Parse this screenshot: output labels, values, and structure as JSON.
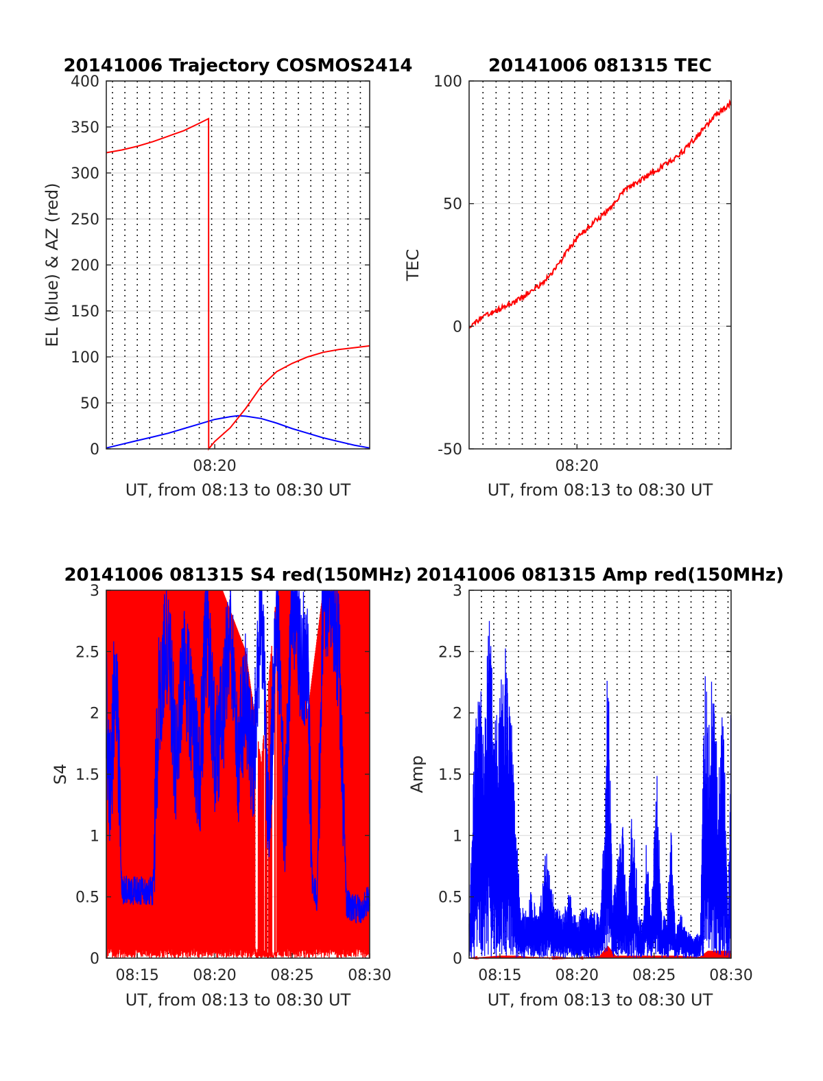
{
  "palette": {
    "red": "#ff0000",
    "blue": "#0000ff",
    "axis": "#262626",
    "grid": "#dcdcdc"
  },
  "chart_data": [
    {
      "type": "line",
      "title": "20141006 Trajectory COSMOS2414",
      "xlabel": "UT, from 08:13 to 08:30 UT",
      "ylabel": "EL (blue) & AZ (red)",
      "xlim": [
        13.0,
        30.0
      ],
      "ylim": [
        0,
        400
      ],
      "yticks": [
        0,
        50,
        100,
        150,
        200,
        250,
        300,
        350,
        400
      ],
      "xticks": [
        {
          "x": 20,
          "label": "08:20"
        }
      ],
      "grid_x": [
        13.4,
        14.2,
        15.0,
        15.8,
        16.6,
        17.4,
        18.2,
        19.0,
        19.8,
        20.6,
        21.4,
        22.2,
        23.0,
        23.8,
        24.6,
        25.4,
        26.2,
        27.0,
        27.8,
        28.6,
        29.4
      ],
      "series": [
        {
          "color": "blue",
          "x": [
            13.0,
            14.0,
            15.0,
            16.0,
            17.0,
            18.0,
            19.0,
            20.0,
            21.0,
            21.5,
            22.0,
            23.0,
            24.0,
            25.0,
            26.0,
            27.0,
            28.0,
            29.0,
            30.0
          ],
          "y": [
            1,
            5,
            9,
            13,
            17,
            22,
            27,
            32,
            35,
            36,
            35.5,
            33,
            28,
            22,
            17,
            12,
            8,
            4,
            1
          ]
        },
        {
          "color": "red",
          "x": [
            13.0,
            14.0,
            15.0,
            16.0,
            17.0,
            18.0,
            19.0,
            19.6,
            19.61,
            20.0,
            21.0,
            22.0,
            23.0,
            24.0,
            25.0,
            26.0,
            27.0,
            28.0,
            29.0,
            30.0
          ],
          "y": [
            322,
            325,
            329,
            334,
            340,
            346,
            354,
            359,
            0,
            8,
            23,
            44,
            68,
            84,
            93,
            100,
            105,
            108,
            110,
            112
          ]
        }
      ]
    },
    {
      "type": "line",
      "title": "20141006 081315 TEC",
      "xlabel": "UT, from 08:13 to 08:30 UT",
      "ylabel": "TEC",
      "xlim": [
        13.0,
        30.0
      ],
      "ylim": [
        -50,
        100
      ],
      "yticks": [
        -50,
        0,
        50,
        100
      ],
      "xticks": [
        {
          "x": 20,
          "label": "08:20"
        }
      ],
      "grid_x": [
        13.9,
        14.75,
        15.6,
        16.45,
        17.3,
        18.15,
        19.0,
        19.85,
        20.7,
        21.55,
        22.4,
        23.25,
        24.1,
        24.95,
        25.8,
        26.65,
        27.5,
        28.35,
        29.2
      ],
      "series": [
        {
          "color": "red",
          "x": [
            13.0,
            14.0,
            15.0,
            16.0,
            17.0,
            18.0,
            19.0,
            20.0,
            21.0,
            22.0,
            23.0,
            24.0,
            25.0,
            26.0,
            27.0,
            28.0,
            29.0,
            30.0
          ],
          "y": [
            0,
            4,
            7,
            10,
            14,
            19,
            27,
            36,
            42,
            47,
            55,
            59,
            63,
            67,
            72,
            79,
            86,
            91
          ]
        }
      ]
    },
    {
      "type": "line",
      "title": "20141006 081315 S4 red(150MHz)",
      "xlabel": "UT, from 08:13 to 08:30 UT",
      "ylabel": "S4",
      "xlim": [
        13.0,
        30.0
      ],
      "ylim": [
        0,
        3
      ],
      "yticks": [
        0,
        0.5,
        1,
        1.5,
        2,
        2.5,
        3
      ],
      "xticks": [
        {
          "x": 15,
          "label": "08:15"
        },
        {
          "x": 20,
          "label": "08:20"
        },
        {
          "x": 25,
          "label": "08:25"
        },
        {
          "x": 30,
          "label": "08:30"
        }
      ],
      "grid_x": [
        13.8,
        14.6,
        15.4,
        16.2,
        17.0,
        17.8,
        18.6,
        19.4,
        20.2,
        21.0,
        21.8,
        22.6,
        23.4,
        24.2,
        25.0,
        25.8,
        26.6,
        27.4,
        28.2,
        29.0,
        29.8
      ],
      "series": [
        {
          "color": "red",
          "x": [
            13.0,
            14.5,
            16.0,
            17.5,
            19.0,
            20.5,
            22.0,
            23.0,
            24.0,
            25.0,
            26.0,
            27.0,
            28.0,
            29.0,
            30.0
          ],
          "y": [
            3.0,
            3.0,
            3.0,
            3.0,
            3.0,
            3.0,
            2.5,
            1.6,
            3.0,
            3.0,
            2.0,
            3.0,
            3.0,
            3.0,
            3.0
          ]
        },
        {
          "color": "blue",
          "x": [
            13.0,
            13.3,
            13.6,
            14.0,
            15.0,
            16.0,
            16.4,
            17.0,
            17.5,
            18.0,
            18.5,
            19.0,
            19.5,
            20.0,
            20.5,
            21.0,
            21.5,
            22.0,
            22.5,
            23.0,
            23.5,
            24.0,
            24.5,
            25.0,
            25.5,
            26.0,
            26.3,
            26.6,
            27.0,
            27.5,
            28.0,
            28.5,
            29.0,
            29.5,
            30.0
          ],
          "y": [
            2.0,
            1.3,
            2.6,
            0.55,
            0.55,
            0.55,
            2.2,
            2.6,
            1.5,
            2.4,
            2.0,
            1.4,
            2.8,
            1.7,
            1.9,
            2.8,
            1.6,
            2.2,
            1.5,
            3.0,
            0.9,
            3.0,
            1.0,
            3.0,
            2.5,
            2.4,
            0.6,
            0.5,
            3.0,
            3.0,
            2.5,
            0.45,
            0.4,
            0.4,
            0.5
          ]
        }
      ]
    },
    {
      "type": "line",
      "title": "20141006 081315 Amp red(150MHz)",
      "xlabel": "UT, from 08:13 to 08:30 UT",
      "ylabel": "Amp",
      "xlim": [
        13.0,
        30.0
      ],
      "ylim": [
        0,
        3
      ],
      "yticks": [
        0,
        0.5,
        1,
        1.5,
        2,
        2.5,
        3
      ],
      "xticks": [
        {
          "x": 15,
          "label": "08:15"
        },
        {
          "x": 20,
          "label": "08:20"
        },
        {
          "x": 25,
          "label": "08:25"
        },
        {
          "x": 30,
          "label": "08:30"
        }
      ],
      "grid_x": [
        13.8,
        14.6,
        15.4,
        16.2,
        17.0,
        17.8,
        18.6,
        19.4,
        20.2,
        21.0,
        21.8,
        22.6,
        23.4,
        24.2,
        25.0,
        25.8,
        26.6,
        27.4,
        28.2,
        29.0,
        29.8
      ],
      "series": [
        {
          "color": "red",
          "x": [
            13.0,
            14.0,
            15.0,
            16.0,
            17.0,
            20.0,
            21.5,
            22.0,
            22.5,
            25.0,
            26.5,
            28.0,
            28.5,
            29.0,
            29.5,
            30.0
          ],
          "y": [
            0.0,
            0.01,
            0.02,
            0.02,
            0.01,
            0.0,
            0.02,
            0.1,
            0.02,
            0.02,
            0.02,
            0.01,
            0.06,
            0.06,
            0.06,
            0.06
          ]
        },
        {
          "color": "blue",
          "x": [
            13.0,
            13.3,
            13.6,
            14.0,
            14.3,
            14.7,
            15.0,
            15.3,
            15.7,
            16.0,
            16.3,
            16.6,
            17.0,
            17.5,
            18.0,
            18.5,
            19.0,
            19.5,
            20.0,
            20.5,
            21.0,
            21.5,
            21.8,
            22.0,
            22.3,
            22.6,
            23.0,
            23.3,
            23.6,
            24.0,
            24.3,
            24.5,
            24.8,
            25.2,
            25.5,
            25.8,
            26.1,
            26.4,
            26.7,
            27.0,
            27.5,
            28.0,
            28.3,
            28.6,
            28.9,
            29.2,
            29.5,
            29.8,
            30.0
          ],
          "y": [
            0.3,
            1.8,
            2.4,
            2.0,
            2.8,
            2.1,
            2.2,
            2.7,
            2.3,
            1.2,
            0.5,
            0.4,
            0.55,
            0.35,
            0.9,
            0.5,
            0.35,
            0.55,
            0.3,
            0.45,
            0.4,
            0.35,
            1.2,
            2.6,
            0.5,
            0.8,
            1.1,
            0.3,
            1.4,
            0.35,
            0.3,
            0.95,
            0.35,
            1.6,
            0.4,
            0.3,
            1.1,
            0.2,
            0.4,
            0.25,
            0.2,
            0.2,
            2.5,
            2.0,
            2.6,
            1.5,
            2.2,
            0.3,
            2.2
          ]
        }
      ]
    }
  ]
}
